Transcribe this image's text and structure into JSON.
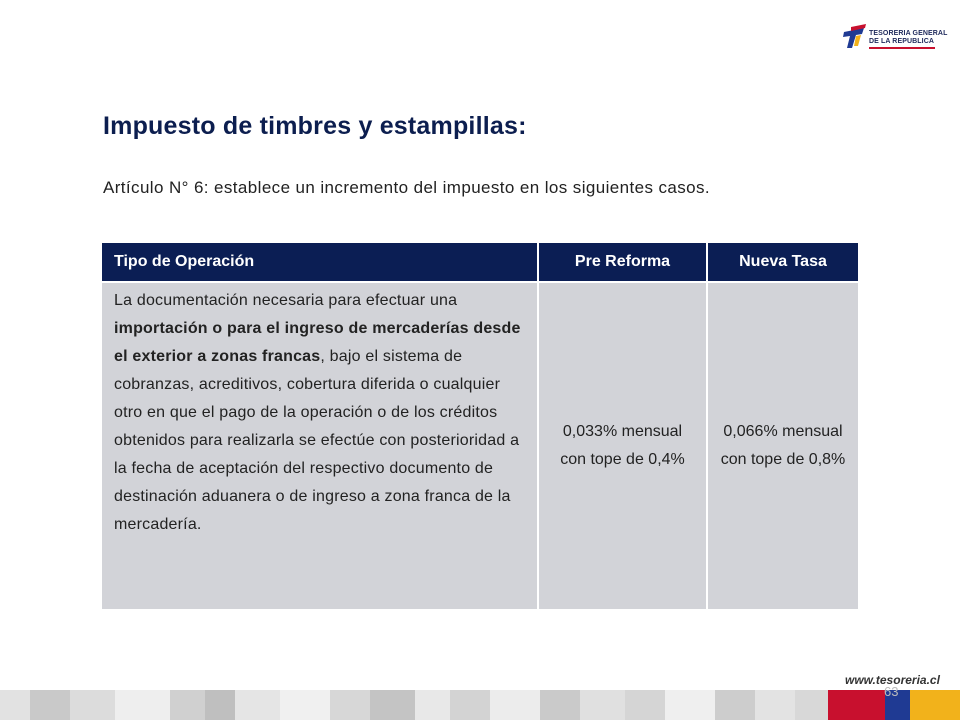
{
  "logo": {
    "line1": "TESORERIA GENERAL",
    "line2": "DE LA REPUBLICA"
  },
  "title": "Impuesto de timbres y estampillas:",
  "intro": "Artículo N° 6: establece un incremento del impuesto en los siguientes casos.",
  "table": {
    "headers": [
      "Tipo de Operación",
      "Pre Reforma",
      "Nueva Tasa"
    ],
    "row": {
      "desc_parts": [
        "La documentación necesaria para efectuar una ",
        "importación o para el ingreso de mercaderías desde el exterior a zonas francas",
        ", bajo el sistema de cobranzas, acreditivos, cobertura diferida o cualquier otro en que el pago de la operación o de los créditos obtenidos para realizarla se efectúe con posterioridad a la fecha de aceptación del respectivo documento de destinación aduanera o de ingreso a zona franca de la mercadería."
      ],
      "pre_reforma": "0,033% mensual con tope de 0,4%",
      "nueva_tasa": "0,066% mensual con tope de 0,8%"
    }
  },
  "footer": {
    "url": "www.tesoreria.cl",
    "page": "63"
  },
  "colors": {
    "navy": "#0b1e54",
    "cell": "#d2d3d8",
    "red": "#c8102e",
    "yellow": "#f2b21b",
    "blue": "#1f3a93"
  }
}
